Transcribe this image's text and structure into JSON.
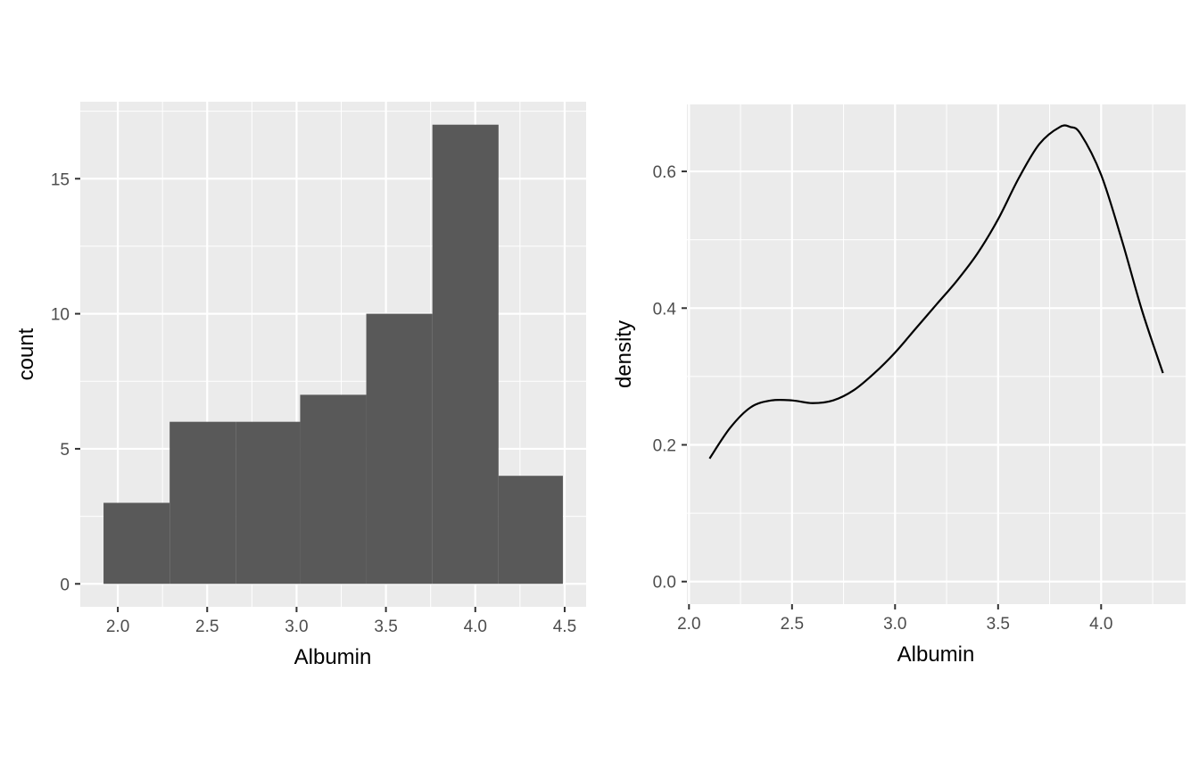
{
  "chart_data": [
    {
      "type": "bar",
      "subtype": "histogram",
      "xlabel": "Albumin",
      "ylabel": "count",
      "bins": [
        {
          "x0": 1.92,
          "x1": 2.29,
          "count": 3
        },
        {
          "x0": 2.29,
          "x1": 2.66,
          "count": 6
        },
        {
          "x0": 2.66,
          "x1": 3.02,
          "count": 6
        },
        {
          "x0": 3.02,
          "x1": 3.39,
          "count": 7
        },
        {
          "x0": 3.39,
          "x1": 3.76,
          "count": 10
        },
        {
          "x0": 3.76,
          "x1": 4.13,
          "count": 17
        },
        {
          "x0": 4.13,
          "x1": 4.49,
          "count": 4
        }
      ],
      "xlim": [
        1.79,
        4.62
      ],
      "ylim": [
        -0.85,
        17.85
      ],
      "x_ticks": [
        2.0,
        2.5,
        3.0,
        3.5,
        4.0,
        4.5
      ],
      "x_tick_labels": [
        "2.0",
        "2.5",
        "3.0",
        "3.5",
        "4.0",
        "4.5"
      ],
      "y_ticks": [
        0,
        5,
        10,
        15
      ],
      "y_tick_labels": [
        "0",
        "5",
        "10",
        "15"
      ],
      "bar_color": "#595959",
      "panel_background": "#ebebeb",
      "grid": true
    },
    {
      "type": "line",
      "subtype": "density",
      "xlabel": "Albumin",
      "ylabel": "density",
      "x": [
        2.1,
        2.2,
        2.3,
        2.4,
        2.5,
        2.6,
        2.7,
        2.8,
        2.9,
        3.0,
        3.1,
        3.2,
        3.3,
        3.4,
        3.5,
        3.6,
        3.7,
        3.8,
        3.85,
        3.9,
        4.0,
        4.1,
        4.2,
        4.3
      ],
      "y": [
        0.18,
        0.225,
        0.255,
        0.265,
        0.265,
        0.261,
        0.265,
        0.28,
        0.305,
        0.335,
        0.37,
        0.405,
        0.44,
        0.48,
        0.53,
        0.59,
        0.64,
        0.665,
        0.665,
        0.655,
        0.595,
        0.5,
        0.395,
        0.305
      ],
      "xlim": [
        1.99,
        4.41
      ],
      "ylim": [
        -0.033,
        0.698
      ],
      "x_ticks": [
        2.0,
        2.5,
        3.0,
        3.5,
        4.0
      ],
      "x_tick_labels": [
        "2.0",
        "2.5",
        "3.0",
        "3.5",
        "4.0"
      ],
      "y_ticks": [
        0.0,
        0.2,
        0.4,
        0.6
      ],
      "y_tick_labels": [
        "0.0",
        "0.2",
        "0.4",
        "0.6"
      ],
      "line_color": "#000000",
      "panel_background": "#ebebeb",
      "grid": true
    }
  ]
}
